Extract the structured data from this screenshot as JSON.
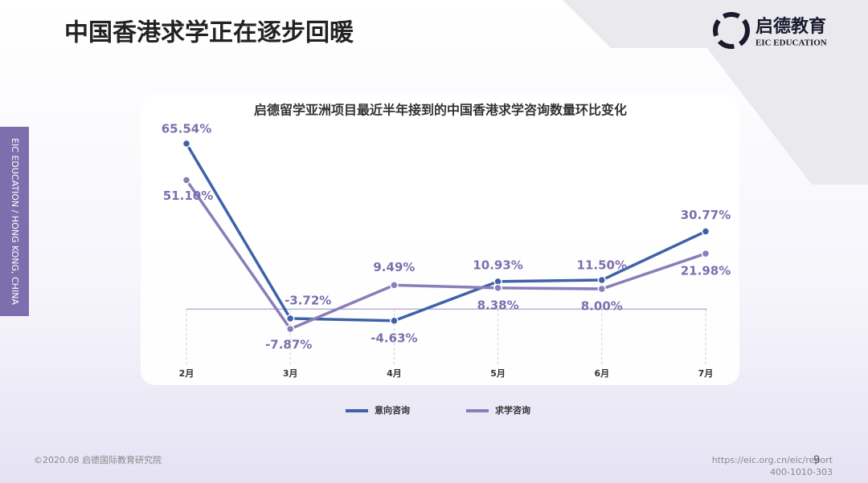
{
  "header": {
    "title": "中国香港求学正在逐步回暖",
    "logo_name": "启德教育",
    "logo_sub": "EIC EDUCATION"
  },
  "side_label": "EIC EDUCATION / HONG KONG, CHINA",
  "chart_data": {
    "type": "line",
    "title": "启德留学亚洲项目最近半年接到的中国香港求学咨询数量环比变化",
    "categories": [
      "2月",
      "3月",
      "4月",
      "5月",
      "6月",
      "7月"
    ],
    "series": [
      {
        "name": "意向咨询",
        "color": "#3e62a8",
        "values": [
          65.54,
          -3.72,
          -4.63,
          10.93,
          11.5,
          30.77
        ],
        "value_labels": [
          "65.54%",
          "-3.72%",
          "-4.63%",
          "10.93%",
          "11.50%",
          "30.77%"
        ]
      },
      {
        "name": "求学咨询",
        "color": "#8a7db8",
        "values": [
          51.1,
          -7.87,
          9.49,
          8.38,
          8.0,
          21.98
        ],
        "value_labels": [
          "51.10%",
          "-7.87%",
          "9.49%",
          "8.38%",
          "8.00%",
          "21.98%"
        ]
      }
    ]
  },
  "footer": {
    "copyright": "©2020.08 启德国际教育研究院",
    "url": "https://eic.org.cn/eic/report",
    "phone": "400-1010-303",
    "page": "9"
  }
}
